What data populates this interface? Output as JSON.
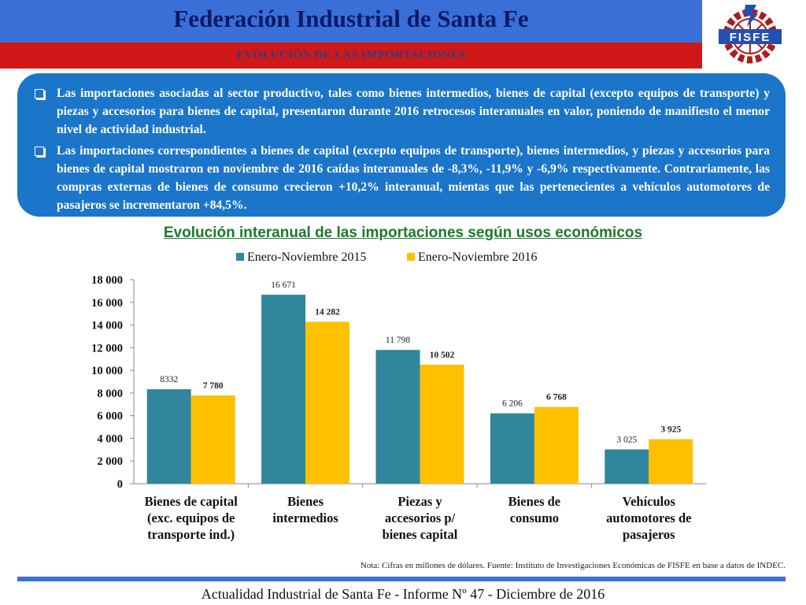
{
  "header": {
    "title": "Federación Industrial de Santa Fe",
    "subtitle": "EVOLUCIÓN DE LAS IMPORTACIONES",
    "logo_text": "FISFE"
  },
  "bullets": [
    "Las importaciones asociadas al sector productivo, tales como bienes intermedios, bienes de capital (excepto equipos de transporte) y piezas y accesorios para bienes de capital, presentaron durante 2016 retrocesos interanuales en valor, poniendo de manifiesto el menor nivel de actividad industrial.",
    "Las importaciones correspondientes a bienes de capital (excepto equipos de transporte), bienes intermedios, y piezas y accesorios para bienes de capital mostraron en noviembre de 2016 caídas interanuales de -8,3%, -11,9% y -6,9% respectivamente. Contrariamente, las compras externas de bienes de consumo crecieron +10,2% interanual, mientas que las pertenecientes a vehículos automotores de pasajeros se incrementaron +84,5%."
  ],
  "chart_data": {
    "type": "bar",
    "title": "Evolución interanual de las importaciones según usos económicos",
    "categories": [
      [
        "Bienes de capital",
        "(exc. equipos de",
        "transporte ind.)"
      ],
      [
        "Bienes",
        "intermedios"
      ],
      [
        "Piezas y",
        "accesorios p/",
        "bienes capital"
      ],
      [
        "Bienes de",
        "consumo"
      ],
      [
        "Vehículos",
        "automotores de",
        "pasajeros"
      ]
    ],
    "series": [
      {
        "name": "Enero-Noviembre 2015",
        "color": "#31859c",
        "values": [
          8332,
          16671,
          11798,
          6206,
          3025
        ],
        "labels": [
          "8332",
          "16 671",
          "11 798",
          "6 206",
          "3 025"
        ]
      },
      {
        "name": "Enero-Noviembre 2016",
        "color": "#ffc000",
        "values": [
          7780,
          14282,
          10502,
          6768,
          3925
        ],
        "labels": [
          "7 780",
          "14 282",
          "10 502",
          "6 768",
          "3 925"
        ]
      }
    ],
    "ylim": [
      0,
      18000
    ],
    "yticks": [
      0,
      2000,
      4000,
      6000,
      8000,
      10000,
      12000,
      14000,
      16000,
      18000
    ],
    "ytick_labels": [
      "0",
      "2 000",
      "4 000",
      "6 000",
      "8 000",
      "10 000",
      "12 000",
      "14 000",
      "16 000",
      "18 000"
    ],
    "legend_position": "top",
    "grid": false
  },
  "note": "Nota: Cifras en millones de dólares. Fuente: Instituto de Investigaciones Económicas de  FISFE en base a datos de INDEC.",
  "footer": "Actualidad Industrial de Santa Fe - Informe Nº 47 - Diciembre de 2016"
}
